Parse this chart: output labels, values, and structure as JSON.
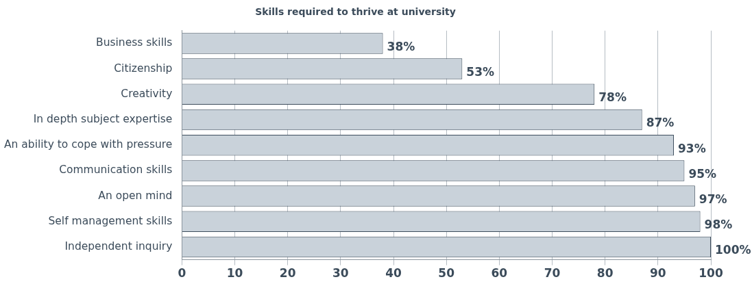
{
  "chart_data": {
    "type": "bar",
    "orientation": "horizontal",
    "title": "Skills required to thrive at university",
    "categories": [
      "Business skills",
      "Citizenship",
      "Creativity",
      "In depth subject expertise",
      "An ability to cope with pressure",
      "Communication skills",
      "An open mind",
      "Self management skills",
      "Independent inquiry"
    ],
    "values": [
      38,
      53,
      78,
      87,
      93,
      95,
      97,
      98,
      100
    ],
    "value_labels": [
      "38%",
      "53%",
      "78%",
      "87%",
      "93%",
      "95%",
      "97%",
      "98%",
      "100%"
    ],
    "color": "#c9d2da",
    "xlim": [
      0,
      100
    ],
    "xticks": [
      0,
      10,
      20,
      30,
      40,
      50,
      60,
      70,
      80,
      90,
      100
    ],
    "grid": "x",
    "legend": false
  }
}
